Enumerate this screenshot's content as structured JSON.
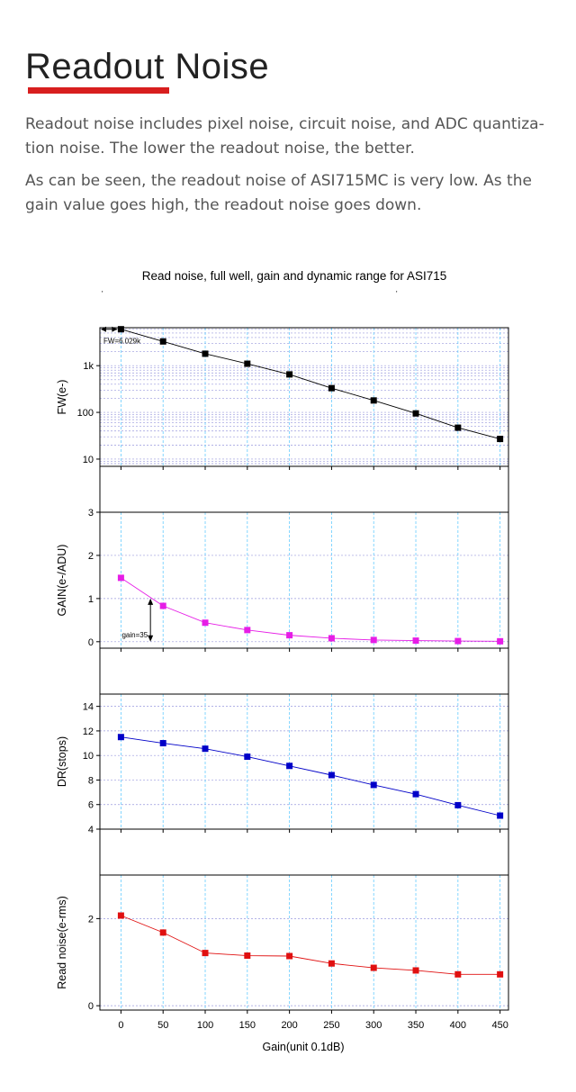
{
  "heading": "Readout Noise",
  "paragraphs": [
    "Readout noise includes pixel noise, circuit noise, and ADC quantiza-tion noise. The lower the readout noise, the better.",
    "As can be seen, the readout noise of ASI715MC is very low. As the gain value goes high, the readout noise goes down."
  ],
  "colors": {
    "accent": "#d81e1e",
    "fw": "#000000",
    "gain": "#e61ee6",
    "dr": "#0000c8",
    "read_noise": "#e01010",
    "grid": "#9999dd",
    "vgrid": "#66ccff"
  },
  "chart_data": {
    "type": "line",
    "title": "Read noise, full well, gain and dynamic range for ASI715",
    "xlabel": "Gain(unit 0.1dB)",
    "x": [
      0,
      50,
      100,
      150,
      200,
      250,
      300,
      350,
      400,
      450
    ],
    "x_ticks": [
      "0",
      "50",
      "100",
      "150",
      "200",
      "250",
      "300",
      "350",
      "400",
      "450"
    ],
    "xlim": [
      -25,
      460
    ],
    "grid": true,
    "panels": [
      {
        "id": "fw",
        "ylabel": "FW(e-)",
        "scale": "log",
        "ylim": [
          7,
          6500
        ],
        "ticks": [
          10,
          100,
          1000
        ],
        "tick_labels": [
          "10",
          "100",
          "1k"
        ],
        "annotation": "FW=6.029k",
        "series": [
          {
            "values": [
              6029,
              3300,
              1800,
              1100,
              650,
              330,
              180,
              95,
              47,
              27
            ]
          }
        ]
      },
      {
        "id": "gain",
        "ylabel": "GAIN(e-/ADU)",
        "scale": "linear",
        "ylim": [
          -0.15,
          3
        ],
        "ticks": [
          0,
          1,
          2,
          3
        ],
        "tick_labels": [
          "0",
          "1",
          "2",
          "3"
        ],
        "annotation": "gain=35",
        "series": [
          {
            "values": [
              1.48,
              0.83,
              0.44,
              0.27,
              0.15,
              0.08,
              0.04,
              0.025,
              0.015,
              0.01
            ]
          }
        ]
      },
      {
        "id": "dr",
        "ylabel": "DR(stops)",
        "scale": "linear",
        "ylim": [
          4,
          15
        ],
        "ticks": [
          4,
          6,
          8,
          10,
          12,
          14
        ],
        "tick_labels": [
          "4",
          "6",
          "8",
          "10",
          "12",
          "14"
        ],
        "series": [
          {
            "values": [
              11.5,
              11.0,
              10.55,
              9.9,
              9.15,
              8.4,
              7.6,
              6.85,
              5.95,
              5.1
            ]
          }
        ]
      },
      {
        "id": "read_noise",
        "ylabel": "Read noise(e-rms)",
        "scale": "linear",
        "ylim": [
          -0.1,
          3
        ],
        "ticks": [
          0,
          2
        ],
        "tick_labels": [
          "0",
          "2"
        ],
        "series": [
          {
            "values": [
              2.07,
              1.68,
              1.21,
              1.15,
              1.14,
              0.97,
              0.87,
              0.81,
              0.72,
              0.72
            ]
          }
        ]
      }
    ]
  }
}
